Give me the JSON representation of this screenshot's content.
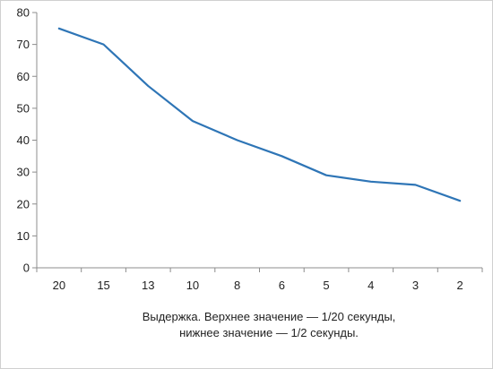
{
  "chart_data": {
    "type": "line",
    "categories": [
      "20",
      "15",
      "13",
      "10",
      "8",
      "6",
      "5",
      "4",
      "3",
      "2"
    ],
    "series": [
      {
        "values": [
          75,
          70,
          57,
          46,
          40,
          35,
          29,
          27,
          26,
          21
        ],
        "color": "#2e75b6"
      }
    ],
    "xlabel_line1": "Выдержка. Верхнее значение — 1/20 секунды,",
    "xlabel_line2": "нижнее значение — 1/2 секунды.",
    "ylim": [
      0,
      80
    ],
    "yticks": [
      0,
      10,
      20,
      30,
      40,
      50,
      60,
      70,
      80
    ],
    "grid": false,
    "legend": "none"
  }
}
